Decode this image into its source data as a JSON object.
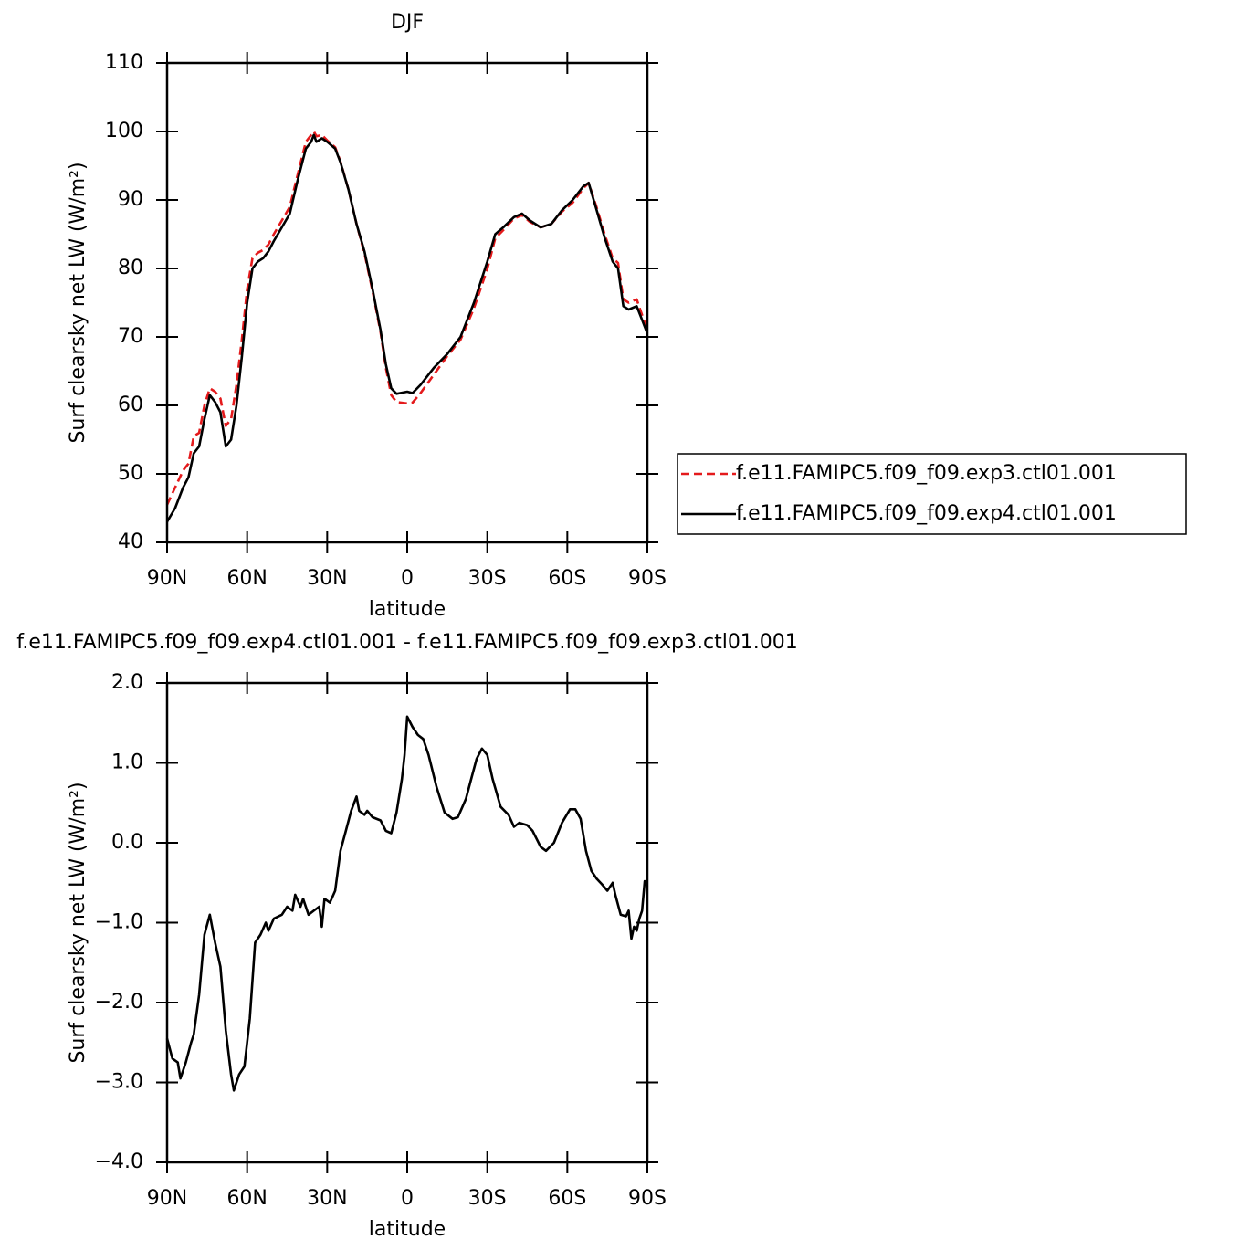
{
  "chart_data": [
    {
      "type": "line",
      "title": "DJF",
      "xlabel": "latitude",
      "ylabel": "Surf clearsky net LW (W/m²)",
      "x": [
        90,
        87,
        84,
        82,
        80,
        78,
        76,
        74,
        72,
        70,
        68,
        66,
        64,
        62,
        60,
        58,
        56,
        54,
        52,
        50,
        47,
        44,
        41,
        38,
        36,
        35,
        34,
        32,
        30,
        27,
        25,
        22,
        19,
        16,
        13,
        10,
        8,
        6,
        4,
        0,
        -2,
        -5,
        -10,
        -15,
        -20,
        -25,
        -30,
        -33,
        -36,
        -40,
        -43,
        -46,
        -50,
        -54,
        -58,
        -62,
        -66,
        -68,
        -71,
        -74,
        -77,
        -79,
        -81,
        -83,
        -86,
        -88,
        -90
      ],
      "series": [
        {
          "name": "f.e11.FAMIPC5.f09_f09.exp3.ctl01.001",
          "color": "#e41a1c",
          "dash": true,
          "values": [
            45.5,
            48,
            50.5,
            51.5,
            55.5,
            56,
            60,
            62.5,
            62,
            61,
            57,
            58,
            63,
            69.5,
            77,
            81.5,
            82.3,
            82.7,
            83.5,
            85,
            87,
            89,
            93.8,
            98.5,
            99.5,
            100,
            99.3,
            99.5,
            98.7,
            97.7,
            95.6,
            91.5,
            86.5,
            82.2,
            76.7,
            70.7,
            65.5,
            61.5,
            60.5,
            60.3,
            60.4,
            61.8,
            64.5,
            67.2,
            69.6,
            74.2,
            79.9,
            84.4,
            85.6,
            87.3,
            87.8,
            86.8,
            86,
            86.5,
            88.3,
            89.6,
            91.7,
            92.5,
            88.9,
            85,
            81.5,
            80.8,
            75.5,
            75,
            75.5,
            73.2,
            71
          ]
        },
        {
          "name": "f.e11.FAMIPC5.f09_f09.exp4.ctl01.001",
          "color": "#000000",
          "dash": false,
          "values": [
            43,
            45,
            48,
            49.5,
            53,
            54,
            58,
            61.5,
            60.5,
            59,
            54,
            55,
            60,
            67,
            75,
            80,
            81,
            81.5,
            82.5,
            84,
            86,
            88,
            93,
            97.5,
            98.5,
            99.5,
            98.5,
            99,
            98.5,
            97.5,
            95.5,
            91.5,
            86.5,
            82.5,
            77,
            71,
            66,
            62.5,
            61.7,
            62,
            61.8,
            63,
            65.5,
            67.5,
            70,
            75,
            81,
            85,
            86,
            87.5,
            88,
            87,
            86,
            86.5,
            88.5,
            90,
            92,
            92.5,
            88.5,
            84.5,
            81,
            80,
            74.5,
            74,
            74.5,
            72.5,
            70.5
          ]
        }
      ],
      "xlim": [
        90,
        -90
      ],
      "xticks": [
        {
          "value": 90,
          "label": "90N"
        },
        {
          "value": 60,
          "label": "60N"
        },
        {
          "value": 30,
          "label": "30N"
        },
        0,
        {
          "value": -30,
          "label": "30S"
        },
        {
          "value": -60,
          "label": "60S"
        },
        {
          "value": -90,
          "label": "90S"
        }
      ],
      "ylim": [
        40,
        110
      ],
      "yticks": [
        40,
        50,
        60,
        70,
        80,
        90,
        100,
        110
      ],
      "legend": "right"
    },
    {
      "type": "line",
      "title": "f.e11.FAMIPC5.f09_f09.exp4.ctl01.001 - f.e11.FAMIPC5.f09_f09.exp3.ctl01.001",
      "xlabel": "latitude",
      "ylabel": "Surf clearsky net LW (W/m²)",
      "x": [
        90,
        88,
        86,
        85,
        83,
        81,
        80,
        78,
        76,
        74,
        72,
        70,
        68,
        66,
        65,
        63,
        61,
        59,
        57,
        55,
        53,
        52,
        50,
        47,
        45,
        43,
        42,
        40,
        39,
        37,
        35,
        33,
        32,
        31,
        29,
        27,
        25,
        23,
        21,
        19,
        18,
        16,
        15,
        13,
        10,
        8,
        6,
        4,
        2,
        1,
        0,
        -2,
        -4,
        -6,
        -8,
        -11,
        -14,
        -17,
        -19,
        -22,
        -24,
        -26,
        -28,
        -30,
        -32,
        -35,
        -38,
        -40,
        -42,
        -45,
        -47,
        -50,
        -52,
        -55,
        -58,
        -61,
        -63,
        -65,
        -67,
        -69,
        -71,
        -73,
        -75,
        -77,
        -78,
        -80,
        -82,
        -83,
        -84,
        -85,
        -86,
        -87,
        -88,
        -89,
        -90
      ],
      "series": [
        {
          "color": "#000000",
          "dash": false,
          "values": [
            -2.45,
            -2.7,
            -2.75,
            -2.95,
            -2.75,
            -2.5,
            -2.4,
            -1.9,
            -1.15,
            -0.9,
            -1.25,
            -1.55,
            -2.35,
            -2.9,
            -3.1,
            -2.9,
            -2.8,
            -2.2,
            -1.25,
            -1.15,
            -1.0,
            -1.1,
            -0.95,
            -0.9,
            -0.8,
            -0.85,
            -0.65,
            -0.8,
            -0.7,
            -0.9,
            -0.85,
            -0.8,
            -1.05,
            -0.7,
            -0.75,
            -0.6,
            -0.1,
            0.15,
            0.4,
            0.58,
            0.4,
            0.35,
            0.4,
            0.32,
            0.28,
            0.15,
            0.12,
            0.38,
            0.8,
            1.1,
            1.58,
            1.45,
            1.35,
            1.3,
            1.1,
            0.7,
            0.38,
            0.3,
            0.32,
            0.55,
            0.8,
            1.05,
            1.18,
            1.1,
            0.8,
            0.45,
            0.35,
            0.2,
            0.25,
            0.22,
            0.15,
            -0.05,
            -0.1,
            0.0,
            0.25,
            0.42,
            0.42,
            0.3,
            -0.1,
            -0.35,
            -0.45,
            -0.52,
            -0.6,
            -0.5,
            -0.65,
            -0.9,
            -0.92,
            -0.85,
            -1.2,
            -1.05,
            -1.1,
            -0.95,
            -0.85,
            -0.48,
            -0.55
          ]
        }
      ],
      "xlim": [
        90,
        -90
      ],
      "xticks": [
        {
          "value": 90,
          "label": "90N"
        },
        {
          "value": 60,
          "label": "60N"
        },
        {
          "value": 30,
          "label": "30N"
        },
        0,
        {
          "value": -30,
          "label": "30S"
        },
        {
          "value": -60,
          "label": "60S"
        },
        {
          "value": -90,
          "label": "90S"
        }
      ],
      "ylim": [
        -4,
        2
      ],
      "yticks": [
        {
          "value": -4,
          "label": "−4.0"
        },
        {
          "value": -3,
          "label": "−3.0"
        },
        {
          "value": -2,
          "label": "−2.0"
        },
        {
          "value": -1,
          "label": "−1.0"
        },
        {
          "value": 0,
          "label": "0.0"
        },
        {
          "value": 1,
          "label": "1.0"
        },
        {
          "value": 2,
          "label": "2.0"
        }
      ]
    }
  ]
}
